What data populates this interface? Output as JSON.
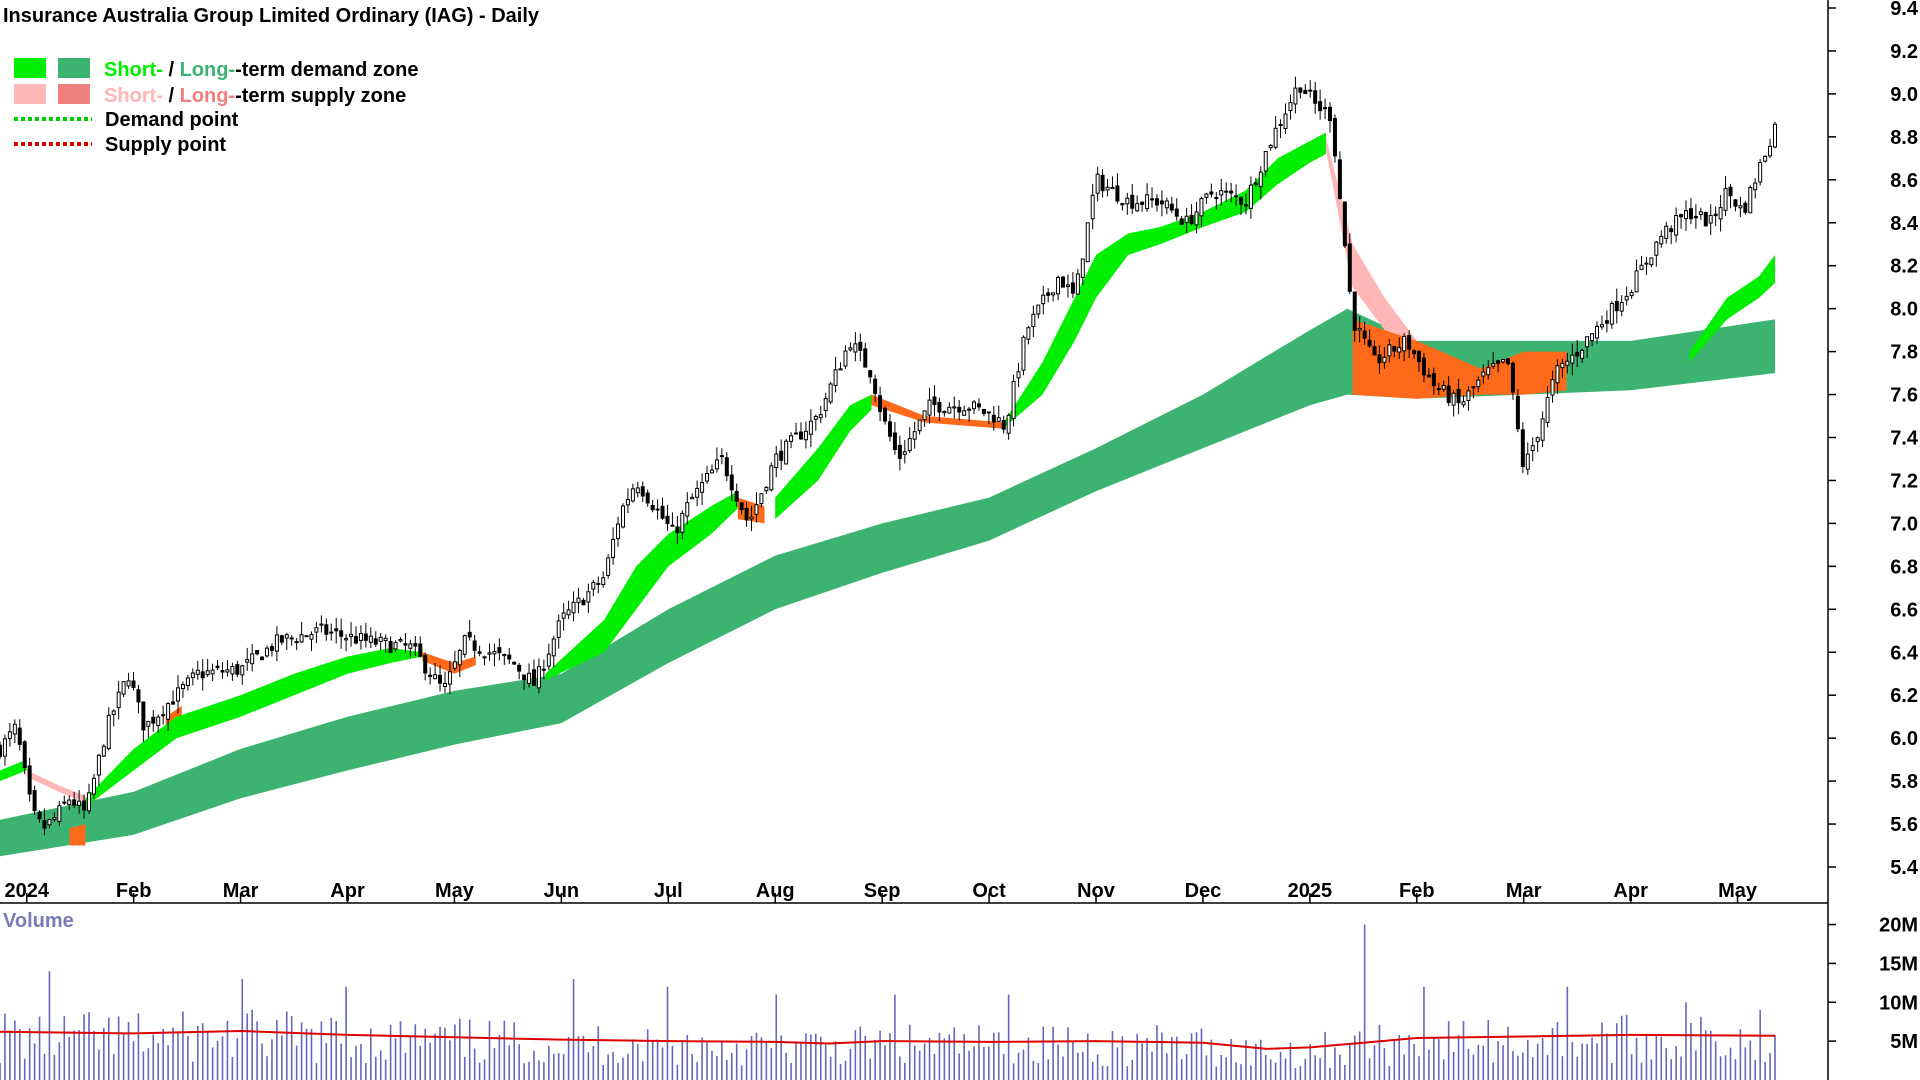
{
  "chart_data": {
    "type": "candlestick",
    "title": "Insurance Australia Group Limited Ordinary (IAG) - Daily",
    "colors": {
      "short_demand": "#00ee00",
      "long_demand": "#3cb371",
      "short_supply": "#ffb6b6",
      "long_supply": "#f08080",
      "mixed_zone": "#ff6a1a",
      "demand_point": "#00cc00",
      "supply_point": "#dd0000",
      "volume_bar": "#6666bb",
      "volume_avg": "#dd0000",
      "candle": "#000000"
    },
    "legend": [
      {
        "part1": "Short-",
        "sep": " / ",
        "part2": "Long-",
        "rest": "-term demand zone",
        "swatch1": "#00ee00",
        "swatch2": "#3cb371",
        "c1": "#00ee00",
        "c2": "#3cb371"
      },
      {
        "part1": "Short-",
        "sep": " / ",
        "part2": "Long-",
        "rest": "-term supply zone",
        "swatch1": "#ffb6b6",
        "swatch2": "#f08080",
        "c1": "#ffb6b6",
        "c2": "#f08080"
      },
      {
        "label": "Demand point",
        "line": "#00cc00"
      },
      {
        "label": "Supply point",
        "line": "#dd0000"
      }
    ],
    "price_axis": {
      "range": [
        5.3,
        9.45
      ],
      "ticks": [
        "9.4",
        "9.2",
        "9.0",
        "8.8",
        "8.6",
        "8.4",
        "8.2",
        "8.0",
        "7.8",
        "7.6",
        "7.4",
        "7.2",
        "7.0",
        "6.8",
        "6.6",
        "6.4",
        "6.2",
        "6.0",
        "5.8",
        "5.6",
        "5.4"
      ]
    },
    "x_axis": {
      "labels": [
        "2024",
        "Feb",
        "Mar",
        "Apr",
        "May",
        "Jun",
        "Jul",
        "Aug",
        "Sep",
        "Oct",
        "Nov",
        "Dec",
        "2025",
        "Feb",
        "Mar",
        "Apr",
        "May"
      ],
      "month_index": [
        0,
        1,
        2,
        3,
        4,
        5,
        6,
        7,
        8,
        9,
        10,
        11,
        12,
        13,
        14,
        15,
        16
      ],
      "start_month_index": -0.25,
      "end_month_index": 16.35
    },
    "price_anchors": [
      [
        -0.25,
        5.95
      ],
      [
        -0.1,
        6.05
      ],
      [
        0.05,
        5.65
      ],
      [
        0.15,
        5.58
      ],
      [
        0.25,
        5.62
      ],
      [
        0.4,
        5.72
      ],
      [
        0.55,
        5.65
      ],
      [
        0.75,
        6.05
      ],
      [
        0.95,
        6.3
      ],
      [
        1.1,
        6.05
      ],
      [
        1.3,
        6.15
      ],
      [
        1.6,
        6.3
      ],
      [
        2.0,
        6.32
      ],
      [
        2.35,
        6.45
      ],
      [
        2.75,
        6.5
      ],
      [
        3.2,
        6.45
      ],
      [
        3.6,
        6.42
      ],
      [
        3.9,
        6.22
      ],
      [
        4.1,
        6.45
      ],
      [
        4.55,
        6.35
      ],
      [
        4.75,
        6.25
      ],
      [
        5.0,
        6.55
      ],
      [
        5.4,
        6.75
      ],
      [
        5.55,
        7.05
      ],
      [
        5.7,
        7.2
      ],
      [
        6.05,
        6.95
      ],
      [
        6.2,
        7.1
      ],
      [
        6.5,
        7.3
      ],
      [
        6.75,
        7.0
      ],
      [
        7.0,
        7.3
      ],
      [
        7.4,
        7.5
      ],
      [
        7.7,
        7.85
      ],
      [
        7.9,
        7.7
      ],
      [
        8.0,
        7.5
      ],
      [
        8.15,
        7.3
      ],
      [
        8.45,
        7.55
      ],
      [
        8.8,
        7.55
      ],
      [
        9.05,
        7.5
      ],
      [
        9.15,
        7.45
      ],
      [
        9.35,
        7.9
      ],
      [
        9.65,
        8.15
      ],
      [
        9.8,
        8.05
      ],
      [
        10.0,
        8.6
      ],
      [
        10.3,
        8.5
      ],
      [
        10.6,
        8.5
      ],
      [
        10.85,
        8.4
      ],
      [
        11.1,
        8.55
      ],
      [
        11.4,
        8.5
      ],
      [
        11.65,
        8.8
      ],
      [
        11.9,
        9.05
      ],
      [
        12.05,
        8.95
      ],
      [
        12.2,
        8.9
      ],
      [
        12.4,
        7.95
      ],
      [
        12.6,
        7.75
      ],
      [
        12.9,
        7.85
      ],
      [
        13.15,
        7.65
      ],
      [
        13.4,
        7.55
      ],
      [
        13.65,
        7.7
      ],
      [
        13.85,
        7.75
      ],
      [
        14.0,
        7.25
      ],
      [
        14.15,
        7.45
      ],
      [
        14.3,
        7.7
      ],
      [
        14.5,
        7.8
      ],
      [
        14.75,
        7.95
      ],
      [
        15.0,
        8.1
      ],
      [
        15.3,
        8.35
      ],
      [
        15.55,
        8.45
      ],
      [
        15.75,
        8.4
      ],
      [
        15.9,
        8.55
      ],
      [
        16.05,
        8.45
      ],
      [
        16.2,
        8.65
      ],
      [
        16.35,
        8.85
      ]
    ],
    "long_demand_zone": {
      "upper": [
        [
          -0.25,
          5.62
        ],
        [
          1.0,
          5.75
        ],
        [
          2.0,
          5.95
        ],
        [
          3.0,
          6.1
        ],
        [
          4.0,
          6.22
        ],
        [
          5.0,
          6.3
        ],
        [
          6.0,
          6.6
        ],
        [
          7.0,
          6.85
        ],
        [
          8.0,
          7.0
        ],
        [
          9.0,
          7.12
        ],
        [
          10.0,
          7.35
        ],
        [
          11.0,
          7.6
        ],
        [
          12.0,
          7.9
        ],
        [
          12.35,
          8.0
        ],
        [
          13.0,
          7.85
        ],
        [
          14.0,
          7.85
        ],
        [
          15.0,
          7.85
        ],
        [
          16.35,
          7.95
        ]
      ],
      "lower": [
        [
          -0.25,
          5.45
        ],
        [
          1.0,
          5.55
        ],
        [
          2.0,
          5.72
        ],
        [
          3.0,
          5.85
        ],
        [
          4.0,
          5.97
        ],
        [
          5.0,
          6.07
        ],
        [
          6.0,
          6.35
        ],
        [
          7.0,
          6.6
        ],
        [
          8.0,
          6.77
        ],
        [
          9.0,
          6.92
        ],
        [
          10.0,
          7.15
        ],
        [
          11.0,
          7.35
        ],
        [
          12.0,
          7.55
        ],
        [
          12.35,
          7.6
        ],
        [
          13.0,
          7.58
        ],
        [
          14.0,
          7.6
        ],
        [
          15.0,
          7.62
        ],
        [
          16.35,
          7.7
        ]
      ]
    },
    "short_demand_zone": [
      {
        "upper": [
          [
            -0.25,
            5.85
          ],
          [
            0.0,
            5.9
          ]
        ],
        "lower": [
          [
            -0.25,
            5.8
          ],
          [
            0.0,
            5.85
          ]
        ]
      },
      {
        "upper": [
          [
            0.55,
            5.72
          ],
          [
            1.0,
            5.95
          ],
          [
            1.4,
            6.1
          ],
          [
            2.0,
            6.2
          ],
          [
            2.5,
            6.3
          ],
          [
            3.0,
            6.38
          ],
          [
            3.4,
            6.42
          ],
          [
            3.7,
            6.4
          ]
        ],
        "lower": [
          [
            0.55,
            5.68
          ],
          [
            1.0,
            5.85
          ],
          [
            1.4,
            6.0
          ],
          [
            2.0,
            6.1
          ],
          [
            2.5,
            6.2
          ],
          [
            3.0,
            6.3
          ],
          [
            3.4,
            6.35
          ],
          [
            3.7,
            6.38
          ]
        ]
      },
      {
        "upper": [
          [
            4.85,
            6.3
          ],
          [
            5.4,
            6.55
          ],
          [
            5.7,
            6.8
          ],
          [
            6.0,
            6.95
          ],
          [
            6.4,
            7.08
          ],
          [
            6.65,
            7.15
          ]
        ],
        "lower": [
          [
            4.85,
            6.27
          ],
          [
            5.4,
            6.4
          ],
          [
            5.7,
            6.6
          ],
          [
            6.0,
            6.8
          ],
          [
            6.4,
            6.95
          ],
          [
            6.65,
            7.07
          ]
        ]
      },
      {
        "upper": [
          [
            7.0,
            7.12
          ],
          [
            7.4,
            7.35
          ],
          [
            7.7,
            7.55
          ],
          [
            7.9,
            7.6
          ]
        ],
        "lower": [
          [
            7.0,
            7.02
          ],
          [
            7.4,
            7.2
          ],
          [
            7.7,
            7.43
          ],
          [
            7.9,
            7.53
          ]
        ]
      },
      {
        "upper": [
          [
            9.15,
            7.48
          ],
          [
            9.5,
            7.75
          ],
          [
            9.8,
            8.05
          ],
          [
            10.0,
            8.25
          ],
          [
            10.3,
            8.35
          ],
          [
            10.6,
            8.38
          ],
          [
            11.0,
            8.45
          ],
          [
            11.4,
            8.55
          ],
          [
            11.7,
            8.7
          ],
          [
            12.0,
            8.78
          ],
          [
            12.15,
            8.82
          ]
        ],
        "lower": [
          [
            9.15,
            7.45
          ],
          [
            9.5,
            7.6
          ],
          [
            9.8,
            7.85
          ],
          [
            10.0,
            8.05
          ],
          [
            10.3,
            8.25
          ],
          [
            10.6,
            8.3
          ],
          [
            11.0,
            8.38
          ],
          [
            11.4,
            8.45
          ],
          [
            11.7,
            8.58
          ],
          [
            12.0,
            8.68
          ],
          [
            12.15,
            8.72
          ]
        ]
      },
      {
        "upper": [
          [
            15.55,
            7.8
          ],
          [
            15.9,
            8.05
          ],
          [
            16.2,
            8.15
          ],
          [
            16.35,
            8.25
          ]
        ],
        "lower": [
          [
            15.55,
            7.75
          ],
          [
            15.9,
            7.95
          ],
          [
            16.2,
            8.05
          ],
          [
            16.35,
            8.12
          ]
        ]
      }
    ],
    "short_supply_zone": [
      {
        "upper": [
          [
            0.0,
            5.85
          ],
          [
            0.3,
            5.78
          ],
          [
            0.55,
            5.73
          ]
        ],
        "lower": [
          [
            0.0,
            5.82
          ],
          [
            0.3,
            5.75
          ],
          [
            0.55,
            5.7
          ]
        ]
      },
      {
        "upper": [
          [
            12.15,
            8.8
          ],
          [
            12.4,
            8.3
          ],
          [
            12.7,
            8.05
          ],
          [
            13.0,
            7.85
          ],
          [
            13.3,
            7.75
          ],
          [
            13.6,
            7.72
          ]
        ],
        "lower": [
          [
            12.15,
            8.74
          ],
          [
            12.4,
            8.1
          ],
          [
            12.7,
            7.9
          ],
          [
            13.0,
            7.78
          ],
          [
            13.3,
            7.72
          ],
          [
            13.6,
            7.68
          ]
        ]
      }
    ],
    "mixed_zone": [
      {
        "upper": [
          [
            0.4,
            5.58
          ],
          [
            0.55,
            5.6
          ]
        ],
        "lower": [
          [
            0.4,
            5.5
          ],
          [
            0.55,
            5.5
          ]
        ]
      },
      {
        "upper": [
          [
            1.3,
            6.1
          ],
          [
            1.45,
            6.15
          ]
        ],
        "lower": [
          [
            1.3,
            6.02
          ],
          [
            1.45,
            6.08
          ]
        ]
      },
      {
        "upper": [
          [
            3.7,
            6.4
          ],
          [
            4.0,
            6.35
          ],
          [
            4.2,
            6.38
          ]
        ],
        "lower": [
          [
            3.7,
            6.36
          ],
          [
            4.0,
            6.3
          ],
          [
            4.2,
            6.34
          ]
        ]
      },
      {
        "upper": [
          [
            6.65,
            7.12
          ],
          [
            6.9,
            7.08
          ]
        ],
        "lower": [
          [
            6.65,
            7.02
          ],
          [
            6.9,
            7.0
          ]
        ]
      },
      {
        "upper": [
          [
            7.9,
            7.6
          ],
          [
            8.4,
            7.5
          ],
          [
            9.15,
            7.47
          ]
        ],
        "lower": [
          [
            7.9,
            7.55
          ],
          [
            8.4,
            7.47
          ],
          [
            9.15,
            7.44
          ]
        ]
      },
      {
        "upper": [
          [
            12.4,
            7.95
          ],
          [
            13.0,
            7.85
          ],
          [
            13.6,
            7.72
          ],
          [
            14.0,
            7.8
          ],
          [
            14.4,
            7.8
          ]
        ],
        "lower": [
          [
            12.4,
            7.6
          ],
          [
            13.0,
            7.58
          ],
          [
            13.6,
            7.6
          ],
          [
            14.0,
            7.6
          ],
          [
            14.4,
            7.62
          ]
        ]
      }
    ],
    "volume_axis": {
      "range": [
        0,
        22
      ],
      "ticks": [
        "20M",
        "15M",
        "10M",
        "5M"
      ],
      "tick_values": [
        20,
        15,
        10,
        5
      ],
      "label": "Volume"
    },
    "volume_avg": [
      [
        -0.25,
        6.2
      ],
      [
        1.0,
        6.0
      ],
      [
        2.0,
        6.3
      ],
      [
        3.0,
        5.8
      ],
      [
        4.0,
        5.5
      ],
      [
        5.0,
        5.2
      ],
      [
        6.0,
        5.0
      ],
      [
        7.0,
        4.9
      ],
      [
        7.5,
        4.7
      ],
      [
        8.0,
        5.0
      ],
      [
        9.0,
        4.9
      ],
      [
        10.0,
        5.0
      ],
      [
        11.0,
        4.8
      ],
      [
        11.6,
        4.0
      ],
      [
        12.0,
        4.2
      ],
      [
        12.5,
        4.8
      ],
      [
        13.0,
        5.4
      ],
      [
        14.0,
        5.6
      ],
      [
        15.0,
        5.8
      ],
      [
        16.35,
        5.7
      ]
    ],
    "volume_spikes": [
      [
        0.2,
        14
      ],
      [
        2.0,
        13
      ],
      [
        3.0,
        12
      ],
      [
        5.1,
        13
      ],
      [
        6.0,
        12
      ],
      [
        7.0,
        11
      ],
      [
        8.1,
        11
      ],
      [
        9.2,
        11
      ],
      [
        12.5,
        20
      ],
      [
        13.05,
        12
      ],
      [
        14.4,
        12
      ],
      [
        15.5,
        10
      ],
      [
        16.2,
        9
      ]
    ]
  }
}
